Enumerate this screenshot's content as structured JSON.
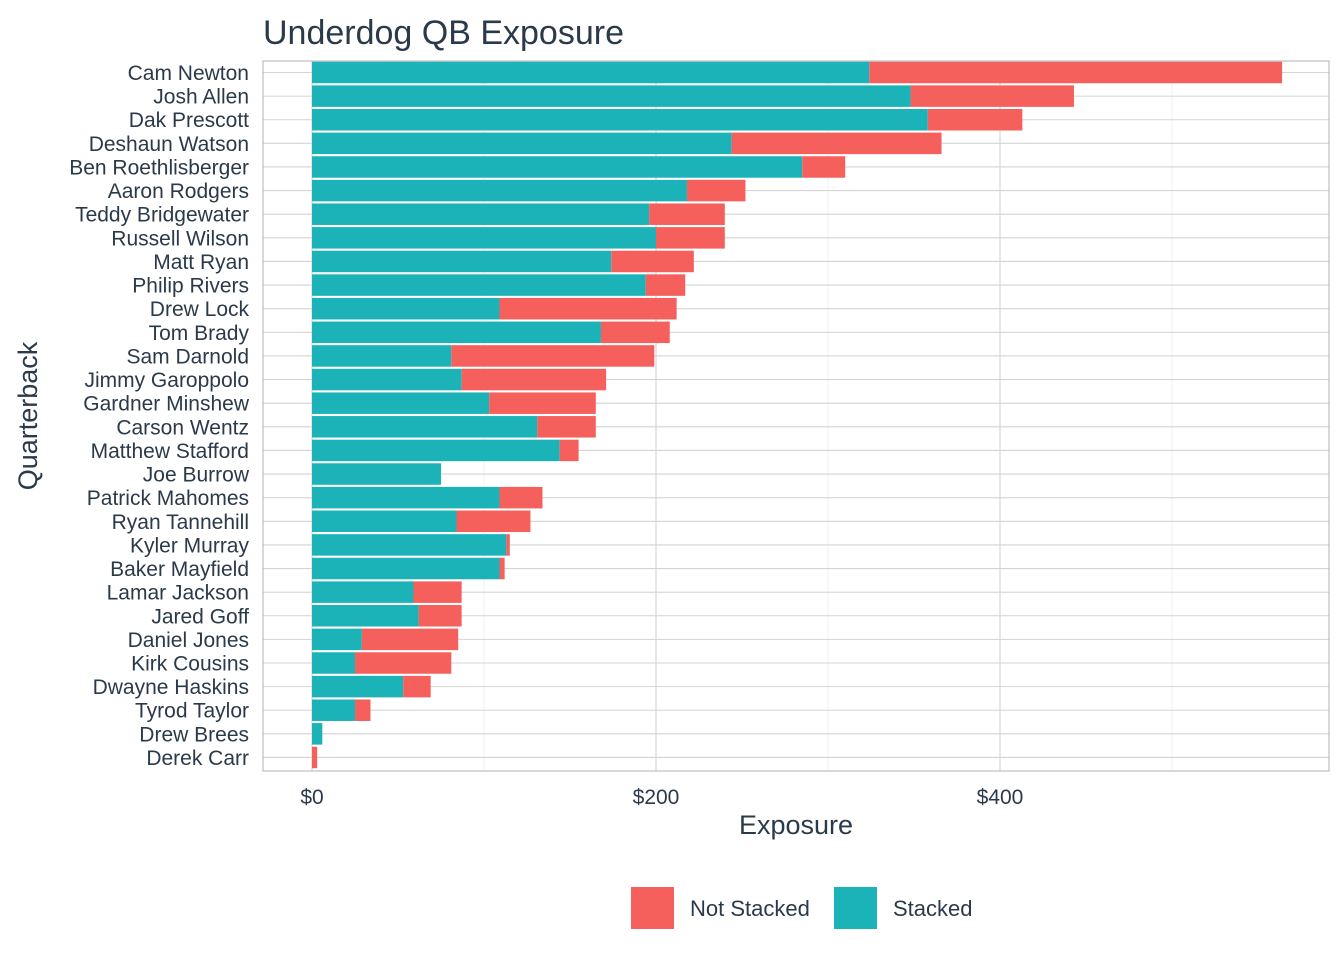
{
  "chart_data": {
    "type": "bar",
    "orientation": "horizontal",
    "stacked": true,
    "title": "Underdog QB Exposure",
    "xlabel": "Exposure",
    "ylabel": "Quarterback",
    "xlim": [
      -28,
      590
    ],
    "x_ticks": [
      0,
      200,
      400
    ],
    "x_tick_labels": [
      "$0",
      "$200",
      "$400"
    ],
    "grid": true,
    "legend_position": "bottom",
    "categories": [
      "Cam Newton",
      "Josh Allen",
      "Dak Prescott",
      "Deshaun Watson",
      "Ben Roethlisberger",
      "Aaron Rodgers",
      "Teddy Bridgewater",
      "Russell Wilson",
      "Matt Ryan",
      "Philip Rivers",
      "Drew Lock",
      "Tom Brady",
      "Sam Darnold",
      "Jimmy Garoppolo",
      "Gardner Minshew",
      "Carson Wentz",
      "Matthew Stafford",
      "Joe Burrow",
      "Patrick Mahomes",
      "Ryan Tannehill",
      "Kyler Murray",
      "Baker Mayfield",
      "Lamar Jackson",
      "Jared Goff",
      "Daniel Jones",
      "Kirk Cousins",
      "Dwayne Haskins",
      "Tyrod Taylor",
      "Drew Brees",
      "Derek Carr"
    ],
    "series": [
      {
        "name": "Stacked",
        "color": "#1cb3b8",
        "values": [
          324,
          348,
          358,
          244,
          285,
          218,
          196,
          200,
          174,
          194,
          109,
          168,
          81,
          87,
          103,
          131,
          144,
          75,
          109,
          84,
          113,
          109,
          59,
          62,
          29,
          25,
          53,
          25,
          6,
          0
        ]
      },
      {
        "name": "Not Stacked",
        "color": "#f5605c",
        "values": [
          240,
          95,
          55,
          122,
          25,
          34,
          44,
          40,
          48,
          23,
          103,
          40,
          118,
          84,
          62,
          34,
          11,
          0,
          25,
          43,
          2,
          3,
          28,
          25,
          56,
          56,
          16,
          9,
          0,
          3
        ]
      }
    ],
    "legend_order": [
      "Not Stacked",
      "Stacked"
    ]
  }
}
